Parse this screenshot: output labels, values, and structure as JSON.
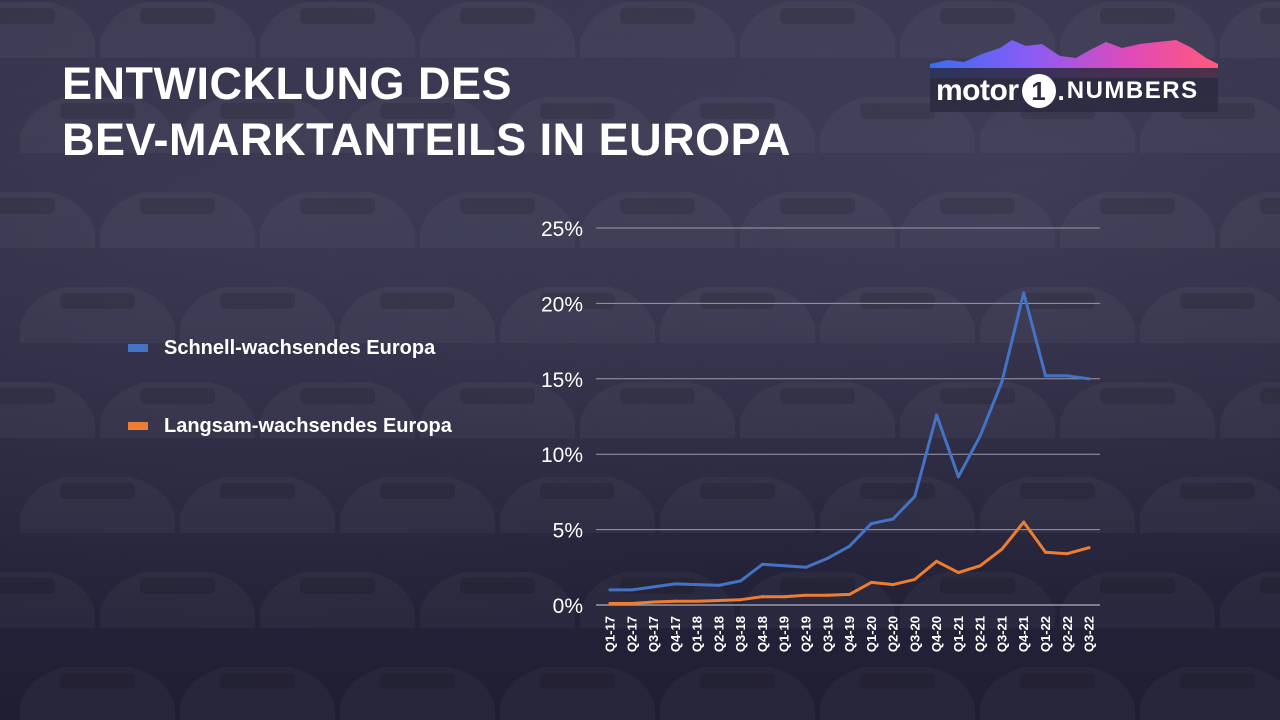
{
  "title": {
    "line1": "ENTWICKLUNG DES",
    "line2": "BEV-MARKTANTEILS IN EUROPA"
  },
  "logo": {
    "text_motor": "motor",
    "text_one": "1",
    "text_dot": ".",
    "text_numbers": "NUMBERS",
    "colors": [
      "#3a6df0",
      "#8a5cf5",
      "#e04ab8",
      "#ff5a7a"
    ]
  },
  "colors": {
    "series_fast": "#4472c4",
    "series_slow": "#ed7d31",
    "gridline": "#9a99a8",
    "text": "#ffffff"
  },
  "chart_data": {
    "type": "line",
    "title": "ENTWICKLUNG DES BEV-MARKTANTEILS IN EUROPA",
    "xlabel": "",
    "ylabel": "",
    "ylim": [
      0,
      25
    ],
    "yticks": [
      "0%",
      "5%",
      "10%",
      "15%",
      "20%",
      "25%"
    ],
    "grid": true,
    "legend_position": "left",
    "categories": [
      "Q1-17",
      "Q2-17",
      "Q3-17",
      "Q4-17",
      "Q1-18",
      "Q2-18",
      "Q3-18",
      "Q4-18",
      "Q1-19",
      "Q2-19",
      "Q3-19",
      "Q4-19",
      "Q1-20",
      "Q2-20",
      "Q3-20",
      "Q4-20",
      "Q1-21",
      "Q2-21",
      "Q3-21",
      "Q4-21",
      "Q1-22",
      "Q2-22",
      "Q3-22"
    ],
    "series": [
      {
        "name": "Schnell-wachsendes Europa",
        "color": "#4472c4",
        "values": [
          1.0,
          1.0,
          1.2,
          1.4,
          1.35,
          1.3,
          1.6,
          2.7,
          2.6,
          2.5,
          3.1,
          3.9,
          5.4,
          5.7,
          7.2,
          12.6,
          8.5,
          11.2,
          14.8,
          20.7,
          15.2,
          15.2,
          15.0
        ]
      },
      {
        "name": "Langsam-wachsendes Europa",
        "color": "#ed7d31",
        "values": [
          0.1,
          0.1,
          0.2,
          0.25,
          0.25,
          0.3,
          0.35,
          0.55,
          0.55,
          0.65,
          0.65,
          0.7,
          1.5,
          1.35,
          1.7,
          2.9,
          2.15,
          2.6,
          3.7,
          5.5,
          3.5,
          3.4,
          3.8
        ]
      }
    ]
  }
}
